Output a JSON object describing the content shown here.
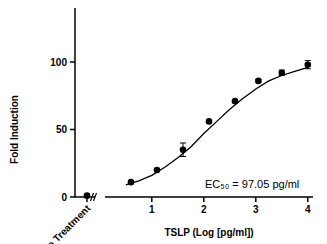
{
  "chart_data": {
    "type": "scatter",
    "y_label": "Fold Induction",
    "x_label": "TSLP (Log [pg/ml])",
    "annotation": "EC₅₀ = 97.05 pg/ml",
    "series": [
      {
        "type": "scatter",
        "marker": "circle",
        "color": "#000000",
        "x": [
          0.6,
          1.1,
          1.6,
          2.1,
          2.6,
          3.05,
          3.5,
          4.0
        ],
        "values": [
          11,
          20,
          35,
          56,
          71,
          86,
          92,
          98
        ],
        "errors": [
          1,
          1,
          5,
          1,
          1,
          1,
          2,
          3
        ]
      },
      {
        "type": "line",
        "line_style": "solid",
        "color": "#000000",
        "x": [
          0.5,
          0.75,
          1.0,
          1.25,
          1.5,
          1.75,
          2.0,
          2.25,
          2.5,
          2.75,
          3.0,
          3.25,
          3.5,
          3.75,
          4.0
        ],
        "values": [
          9,
          12,
          16,
          22,
          29,
          37,
          47,
          56,
          65,
          73,
          80,
          86,
          90,
          93,
          96
        ]
      }
    ],
    "control": {
      "label": "No Treatment",
      "value": 1,
      "error": 0.5
    },
    "xlim": [
      0.1,
      4.1
    ],
    "xticks": [
      1,
      2,
      3,
      4
    ],
    "ylim": [
      0,
      140
    ],
    "yticks": [
      0,
      50,
      100
    ],
    "grid": false
  }
}
